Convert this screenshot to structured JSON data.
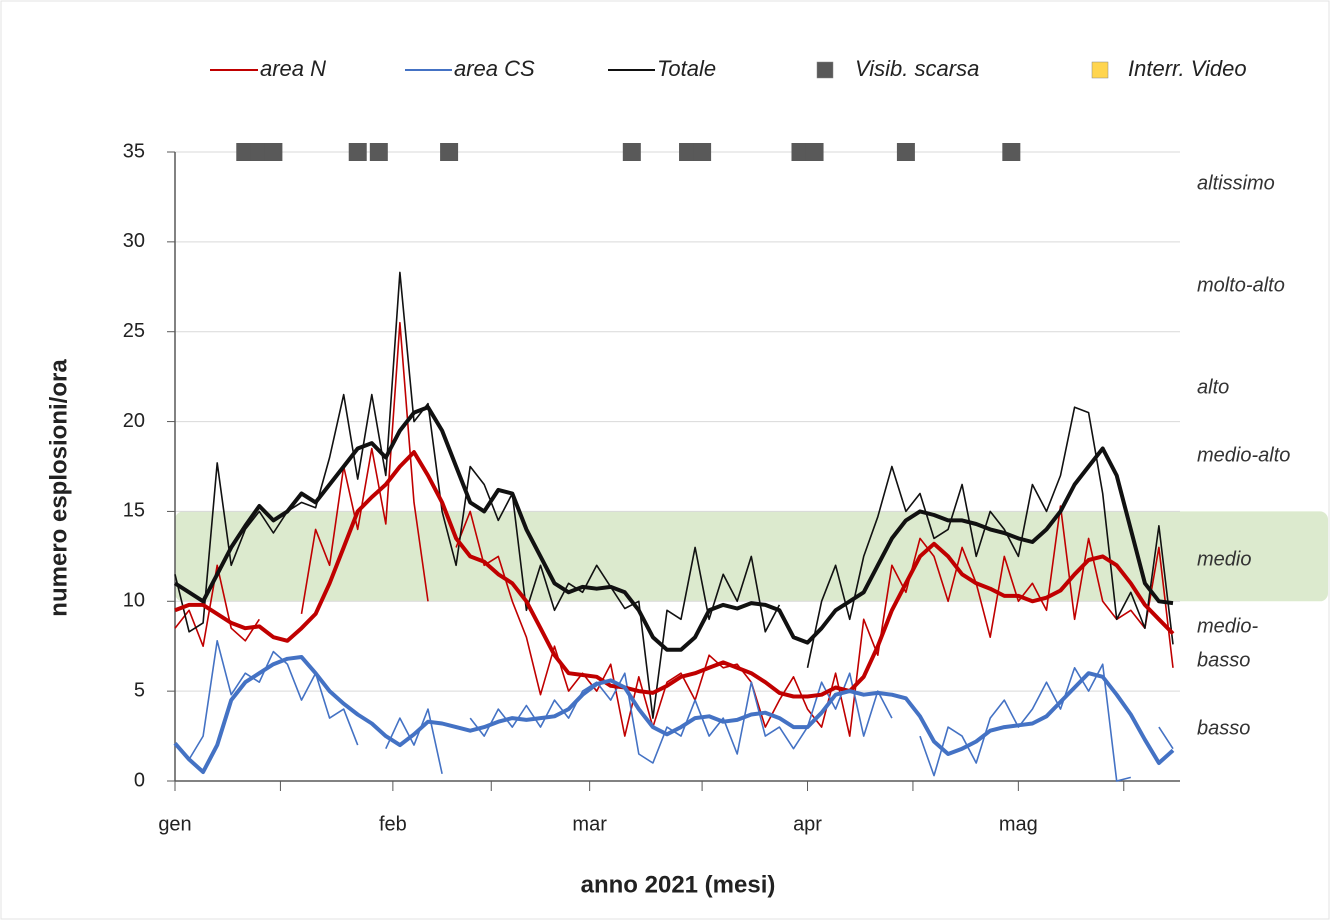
{
  "chart_data": {
    "type": "line",
    "xlabel": "anno 2021 (mesi)",
    "ylabel": "numero esplosioni/ora",
    "xlim": [
      0,
      143
    ],
    "ylim": [
      0,
      35
    ],
    "yticks": [
      0,
      5,
      10,
      15,
      20,
      25,
      30,
      35
    ],
    "xticks": [
      {
        "value": 0,
        "label": "gen"
      },
      {
        "value": 31,
        "label": "feb"
      },
      {
        "value": 59,
        "label": "mar"
      },
      {
        "value": 90,
        "label": "apr"
      },
      {
        "value": 120,
        "label": "mag"
      }
    ],
    "xminor_ticks": [
      15,
      45,
      75,
      105,
      135
    ],
    "grid": true,
    "band": {
      "range": [
        10,
        15
      ],
      "color": "#d6e6c6"
    },
    "levels": [
      "altissimo",
      "molto-alto",
      "alto",
      "medio-alto",
      "medio",
      [
        "medio-",
        "basso"
      ],
      "basso"
    ],
    "x": [
      0,
      2,
      4,
      6,
      8,
      10,
      12,
      14,
      16,
      18,
      20,
      22,
      24,
      26,
      28,
      30,
      32,
      34,
      36,
      38,
      40,
      42,
      44,
      46,
      48,
      50,
      52,
      54,
      56,
      58,
      60,
      62,
      64,
      66,
      68,
      70,
      72,
      74,
      76,
      78,
      80,
      82,
      84,
      86,
      88,
      90,
      92,
      94,
      96,
      98,
      100,
      102,
      104,
      106,
      108,
      110,
      112,
      114,
      116,
      118,
      120,
      122,
      124,
      126,
      128,
      130,
      132,
      134,
      136,
      138,
      140,
      142
    ],
    "series": [
      {
        "name": "area N",
        "color": "#c00000",
        "values": [
          8.5,
          9.5,
          7.5,
          12,
          8.5,
          7.8,
          9,
          null,
          null,
          9.3,
          14,
          12,
          17.5,
          14,
          18.5,
          14.3,
          25.5,
          15.5,
          10,
          null,
          13,
          15,
          12,
          12.5,
          10,
          8,
          4.8,
          7.5,
          5,
          6,
          5,
          6.5,
          2.5,
          5.8,
          3,
          5.5,
          6,
          4.5,
          7,
          6.3,
          6.5,
          5.5,
          3,
          4.5,
          5.8,
          4,
          3,
          6,
          2.5,
          9,
          7,
          12,
          10.5,
          13.5,
          12.5,
          10,
          13,
          11,
          8,
          12.5,
          10,
          11,
          9.5,
          15.3,
          9,
          13.5,
          10,
          9,
          9.5,
          8.5,
          13,
          6.3
        ],
        "smoothed": [
          9.5,
          9.8,
          9.8,
          9.3,
          8.8,
          8.5,
          8.6,
          8,
          7.8,
          8.5,
          9.3,
          11,
          13,
          15,
          15.8,
          16.5,
          17.5,
          18.3,
          17,
          15.5,
          13.5,
          12.5,
          12.2,
          11.5,
          11,
          10,
          8.5,
          7,
          6,
          5.9,
          5.8,
          5.3,
          5.2,
          5,
          4.9,
          5.3,
          5.8,
          6,
          6.3,
          6.6,
          6.3,
          6,
          5.5,
          4.9,
          4.7,
          4.7,
          4.8,
          5.2,
          5,
          5.8,
          7.5,
          9.5,
          11,
          12.5,
          13.2,
          12.5,
          11.5,
          11,
          10.7,
          10.3,
          10.3,
          10,
          10.2,
          10.6,
          11.5,
          12.3,
          12.5,
          12,
          11,
          9.8,
          9,
          8.2
        ]
      },
      {
        "name": "area CS",
        "color": "#4472c4",
        "values": [
          2,
          1.2,
          2.5,
          7.8,
          4.8,
          6,
          5.5,
          7.2,
          6.5,
          4.5,
          6,
          3.5,
          4,
          2,
          null,
          1.8,
          3.5,
          2,
          4,
          0.4,
          null,
          3.5,
          2.5,
          4,
          3,
          4.2,
          3,
          4.5,
          3.5,
          5,
          5.5,
          4.5,
          6,
          1.5,
          1,
          3,
          2.5,
          4.5,
          2.5,
          3.5,
          1.5,
          5.5,
          2.5,
          3,
          1.8,
          3,
          5.5,
          4,
          6,
          2.5,
          5,
          3.5,
          null,
          2.5,
          0.3,
          3,
          2.5,
          1,
          3.5,
          4.5,
          3,
          4,
          5.5,
          4,
          6.3,
          5,
          6.5,
          0,
          0.2,
          null,
          3,
          1.8
        ],
        "smoothed": [
          2.1,
          1.2,
          0.5,
          2,
          4.5,
          5.5,
          6,
          6.5,
          6.8,
          6.9,
          6,
          5,
          4.3,
          3.7,
          3.2,
          2.5,
          2,
          2.6,
          3.3,
          3.2,
          3,
          2.8,
          3,
          3.3,
          3.5,
          3.4,
          3.5,
          3.6,
          4,
          4.8,
          5.4,
          5.6,
          5.2,
          4,
          3,
          2.6,
          3,
          3.5,
          3.6,
          3.3,
          3.4,
          3.7,
          3.8,
          3.5,
          3,
          3,
          3.8,
          4.8,
          5,
          4.8,
          4.9,
          4.8,
          4.6,
          3.6,
          2.2,
          1.5,
          1.8,
          2.2,
          2.8,
          3,
          3.1,
          3.2,
          3.6,
          4.4,
          5.2,
          6,
          5.8,
          4.8,
          3.7,
          2.3,
          1,
          1.7
        ]
      },
      {
        "name": "Totale",
        "color": "#111111",
        "values": [
          11.5,
          8.3,
          8.8,
          17.7,
          12,
          14,
          15,
          13.8,
          15,
          15.5,
          15.2,
          18,
          21.5,
          16.8,
          21.5,
          17,
          28.3,
          20,
          21,
          15,
          12,
          17.5,
          16.5,
          14.5,
          16,
          9.5,
          12,
          9.5,
          11,
          10.5,
          12,
          10.8,
          9.6,
          10,
          3.5,
          9.5,
          9,
          13,
          9,
          11.5,
          10,
          12.5,
          8.3,
          9.8,
          null,
          6.3,
          10,
          12,
          9,
          12.5,
          14.7,
          17.5,
          15,
          16,
          13.5,
          14,
          16.5,
          12.5,
          15,
          14,
          12.5,
          16.5,
          15,
          17,
          20.8,
          20.5,
          16,
          9,
          10.5,
          8.5,
          14.2,
          7.6
        ],
        "smoothed": [
          11,
          10.5,
          10,
          11.5,
          13,
          14.2,
          15.3,
          14.5,
          15,
          16,
          15.5,
          16.5,
          17.5,
          18.5,
          18.8,
          18,
          19.5,
          20.5,
          20.8,
          19.5,
          17.5,
          15.5,
          15,
          16.2,
          16,
          14,
          12.5,
          11,
          10.5,
          10.8,
          10.7,
          10.8,
          10.5,
          9.5,
          8,
          7.3,
          7.3,
          8,
          9.5,
          9.8,
          9.6,
          9.9,
          9.8,
          9.5,
          8,
          7.7,
          8.5,
          9.5,
          10,
          10.5,
          12,
          13.5,
          14.5,
          15,
          14.8,
          14.5,
          14.5,
          14.3,
          14,
          13.8,
          13.5,
          13.3,
          14,
          15,
          16.5,
          17.5,
          18.5,
          17,
          14,
          11,
          10,
          9.9
        ]
      }
    ],
    "markers": [
      {
        "name": "Visib. scarsa",
        "color": "#595959",
        "x": [
          10,
          12,
          14,
          26,
          29,
          39,
          65,
          73,
          75,
          89,
          91,
          104,
          119
        ]
      },
      {
        "name": "Interr. Video",
        "color": "#ffd54f"
      }
    ]
  }
}
